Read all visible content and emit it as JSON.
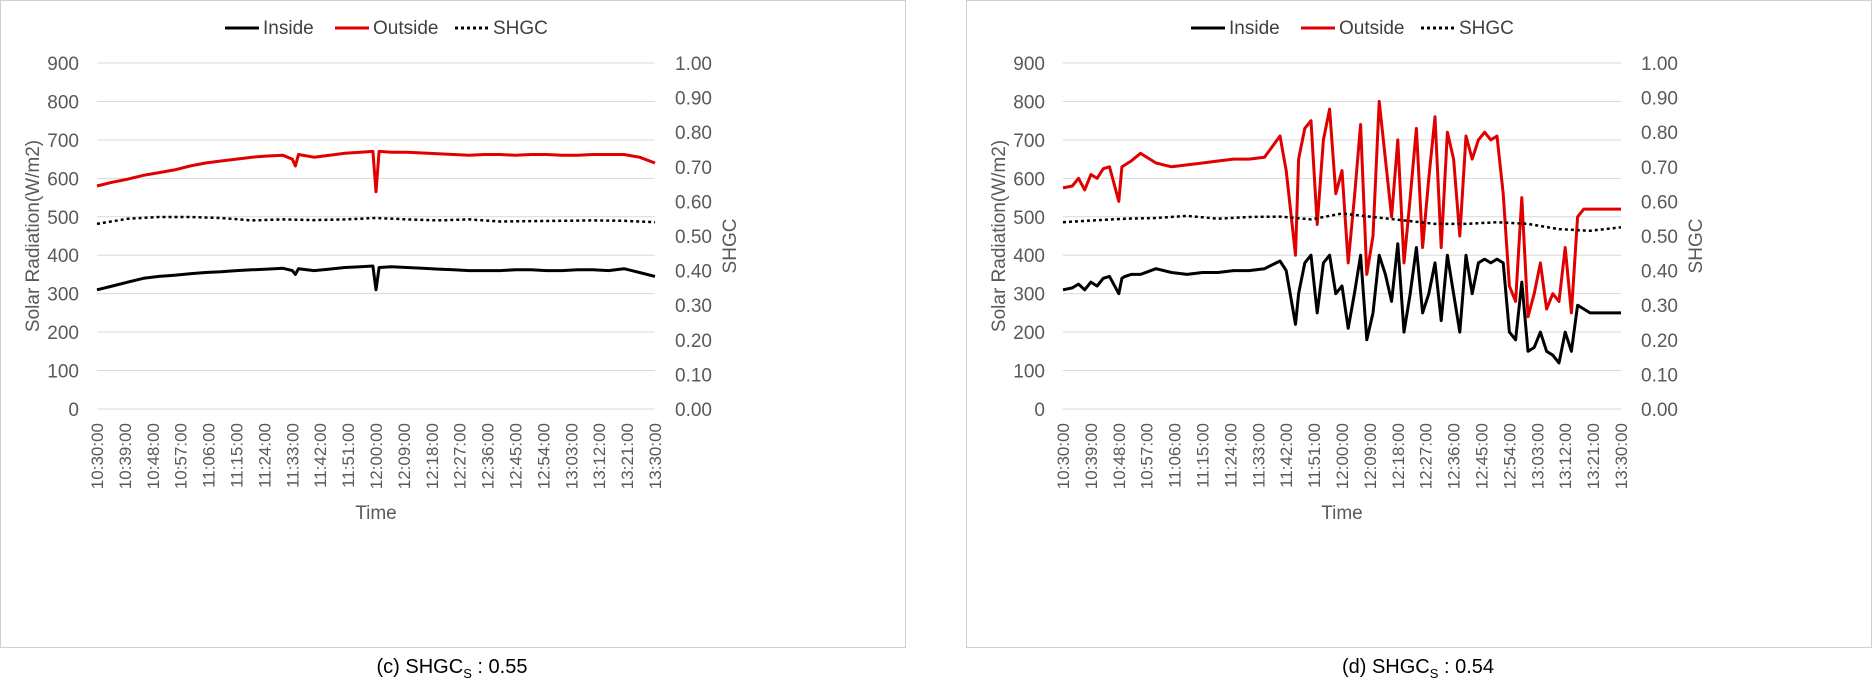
{
  "panels": [
    {
      "caption_main": "(c) SHGC",
      "caption_sub": "S",
      "caption_rest": " : 0.55",
      "chart_data": {
        "type": "line",
        "xlabel": "Time",
        "ylabel": "Solar Radiation(W/m2)",
        "y2label": "SHGC",
        "ylim": [
          0,
          900
        ],
        "y2lim": [
          0.0,
          1.0
        ],
        "yticks": [
          "0",
          "100",
          "200",
          "300",
          "400",
          "500",
          "600",
          "700",
          "800",
          "900"
        ],
        "y2ticks": [
          "0.00",
          "0.10",
          "0.20",
          "0.30",
          "0.40",
          "0.50",
          "0.60",
          "0.70",
          "0.80",
          "0.90",
          "1.00"
        ],
        "xticks": [
          "10:30:00",
          "10:39:00",
          "10:48:00",
          "10:57:00",
          "11:06:00",
          "11:15:00",
          "11:24:00",
          "11:33:00",
          "11:42:00",
          "11:51:00",
          "12:00:00",
          "12:09:00",
          "12:18:00",
          "12:27:00",
          "12:36:00",
          "12:45:00",
          "12:54:00",
          "13:03:00",
          "13:12:00",
          "13:21:00",
          "13:30:00"
        ],
        "x_range_min": [
          0,
          180
        ],
        "legend_position": "top",
        "grid": true,
        "series": [
          {
            "name": "Inside",
            "color": "#000000",
            "dash": "",
            "axis": "y",
            "x": [
              0,
              5,
              10,
              15,
              20,
              25,
              30,
              35,
              40,
              45,
              50,
              55,
              60,
              63,
              64,
              65,
              70,
              75,
              80,
              85,
              89,
              90,
              91,
              95,
              100,
              105,
              110,
              115,
              120,
              125,
              130,
              135,
              140,
              145,
              150,
              155,
              160,
              165,
              170,
              175,
              180
            ],
            "y": [
              310,
              320,
              330,
              340,
              345,
              348,
              352,
              355,
              357,
              360,
              362,
              364,
              366,
              360,
              350,
              365,
              360,
              364,
              368,
              370,
              372,
              310,
              368,
              370,
              368,
              366,
              364,
              362,
              360,
              360,
              360,
              362,
              362,
              360,
              360,
              362,
              362,
              360,
              365,
              355,
              345
            ]
          },
          {
            "name": "Outside",
            "color": "#e00000",
            "dash": "",
            "axis": "y",
            "x": [
              0,
              5,
              10,
              15,
              20,
              25,
              30,
              35,
              40,
              45,
              50,
              55,
              60,
              63,
              64,
              65,
              70,
              75,
              80,
              85,
              89,
              90,
              91,
              95,
              100,
              105,
              110,
              115,
              120,
              125,
              130,
              135,
              140,
              145,
              150,
              155,
              160,
              165,
              170,
              175,
              180
            ],
            "y": [
              580,
              590,
              598,
              608,
              615,
              622,
              632,
              640,
              645,
              650,
              655,
              658,
              660,
              650,
              632,
              662,
              655,
              660,
              665,
              668,
              670,
              565,
              670,
              668,
              668,
              666,
              664,
              662,
              660,
              662,
              662,
              660,
              662,
              662,
              660,
              660,
              662,
              662,
              662,
              655,
              640
            ]
          },
          {
            "name": "SHGC",
            "color": "#000000",
            "dash": "3,3",
            "axis": "y2",
            "x": [
              0,
              10,
              20,
              30,
              40,
              50,
              60,
              70,
              80,
              90,
              100,
              110,
              120,
              130,
              140,
              150,
              160,
              170,
              180
            ],
            "y": [
              0.535,
              0.55,
              0.555,
              0.555,
              0.552,
              0.545,
              0.548,
              0.546,
              0.548,
              0.552,
              0.548,
              0.545,
              0.548,
              0.542,
              0.543,
              0.544,
              0.545,
              0.544,
              0.54
            ]
          }
        ]
      }
    },
    {
      "caption_main": "(d) SHGC",
      "caption_sub": "S",
      "caption_rest": " : 0.54",
      "chart_data": {
        "type": "line",
        "xlabel": "Time",
        "ylabel": "Solar Radiation(W/m2)",
        "y2label": "SHGC",
        "ylim": [
          0,
          900
        ],
        "y2lim": [
          0.0,
          1.0
        ],
        "yticks": [
          "0",
          "100",
          "200",
          "300",
          "400",
          "500",
          "600",
          "700",
          "800",
          "900"
        ],
        "y2ticks": [
          "0.00",
          "0.10",
          "0.20",
          "0.30",
          "0.40",
          "0.50",
          "0.60",
          "0.70",
          "0.80",
          "0.90",
          "1.00"
        ],
        "xticks": [
          "10:30:00",
          "10:39:00",
          "10:48:00",
          "10:57:00",
          "11:06:00",
          "11:15:00",
          "11:24:00",
          "11:33:00",
          "11:42:00",
          "11:51:00",
          "12:00:00",
          "12:09:00",
          "12:18:00",
          "12:27:00",
          "12:36:00",
          "12:45:00",
          "12:54:00",
          "13:03:00",
          "13:12:00",
          "13:21:00",
          "13:30:00"
        ],
        "x_range_min": [
          0,
          180
        ],
        "legend_position": "top",
        "grid": true,
        "series": [
          {
            "name": "Inside",
            "color": "#000000",
            "dash": "",
            "axis": "y",
            "x": [
              0,
              3,
              5,
              7,
              9,
              11,
              13,
              15,
              18,
              19,
              20,
              22,
              25,
              30,
              35,
              40,
              45,
              50,
              55,
              60,
              65,
              70,
              72,
              75,
              76,
              78,
              80,
              82,
              84,
              86,
              88,
              90,
              92,
              94,
              96,
              98,
              100,
              102,
              104,
              106,
              108,
              110,
              112,
              114,
              116,
              118,
              120,
              122,
              124,
              126,
              128,
              130,
              132,
              134,
              136,
              138,
              140,
              142,
              144,
              146,
              148,
              150,
              152,
              154,
              156,
              158,
              160,
              162,
              164,
              166,
              168,
              170,
              172,
              174,
              176,
              178,
              180
            ],
            "y": [
              310,
              315,
              325,
              310,
              330,
              320,
              340,
              345,
              300,
              340,
              345,
              350,
              350,
              365,
              355,
              350,
              355,
              355,
              360,
              360,
              365,
              385,
              360,
              220,
              300,
              380,
              400,
              250,
              380,
              400,
              300,
              320,
              210,
              300,
              400,
              180,
              250,
              400,
              350,
              280,
              430,
              200,
              300,
              420,
              250,
              300,
              380,
              230,
              400,
              300,
              200,
              400,
              300,
              380,
              390,
              380,
              390,
              380,
              200,
              180,
              330,
              150,
              160,
              200,
              150,
              140,
              120,
              200,
              150,
              270,
              260,
              250,
              250,
              250,
              250,
              250,
              250
            ]
          },
          {
            "name": "Outside",
            "color": "#e00000",
            "dash": "",
            "axis": "y",
            "x": [
              0,
              3,
              5,
              7,
              9,
              11,
              13,
              15,
              18,
              19,
              20,
              22,
              25,
              30,
              35,
              40,
              45,
              50,
              55,
              60,
              65,
              70,
              72,
              75,
              76,
              78,
              80,
              82,
              84,
              86,
              88,
              90,
              92,
              94,
              96,
              98,
              100,
              102,
              104,
              106,
              108,
              110,
              112,
              114,
              116,
              118,
              120,
              122,
              124,
              126,
              128,
              130,
              132,
              134,
              136,
              138,
              140,
              142,
              144,
              146,
              148,
              150,
              152,
              154,
              156,
              158,
              160,
              162,
              164,
              166,
              168,
              170,
              172,
              174,
              176,
              178,
              180
            ],
            "y": [
              575,
              580,
              600,
              570,
              610,
              600,
              625,
              630,
              540,
              630,
              635,
              645,
              665,
              640,
              630,
              635,
              640,
              645,
              650,
              650,
              655,
              710,
              620,
              400,
              650,
              730,
              750,
              480,
              700,
              780,
              560,
              620,
              380,
              550,
              740,
              350,
              450,
              800,
              650,
              500,
              700,
              380,
              550,
              730,
              420,
              600,
              760,
              420,
              720,
              650,
              450,
              710,
              650,
              700,
              720,
              700,
              710,
              560,
              320,
              280,
              550,
              240,
              300,
              380,
              260,
              300,
              280,
              420,
              250,
              500,
              520,
              520,
              520,
              520,
              520,
              520,
              520
            ]
          },
          {
            "name": "SHGC",
            "color": "#000000",
            "dash": "3,3",
            "axis": "y2",
            "x": [
              0,
              10,
              20,
              30,
              40,
              50,
              60,
              70,
              80,
              90,
              100,
              110,
              120,
              130,
              140,
              150,
              160,
              170,
              180
            ],
            "y": [
              0.54,
              0.545,
              0.55,
              0.552,
              0.558,
              0.55,
              0.555,
              0.556,
              0.548,
              0.565,
              0.555,
              0.545,
              0.535,
              0.535,
              0.54,
              0.535,
              0.52,
              0.515,
              0.525
            ]
          }
        ]
      }
    }
  ]
}
